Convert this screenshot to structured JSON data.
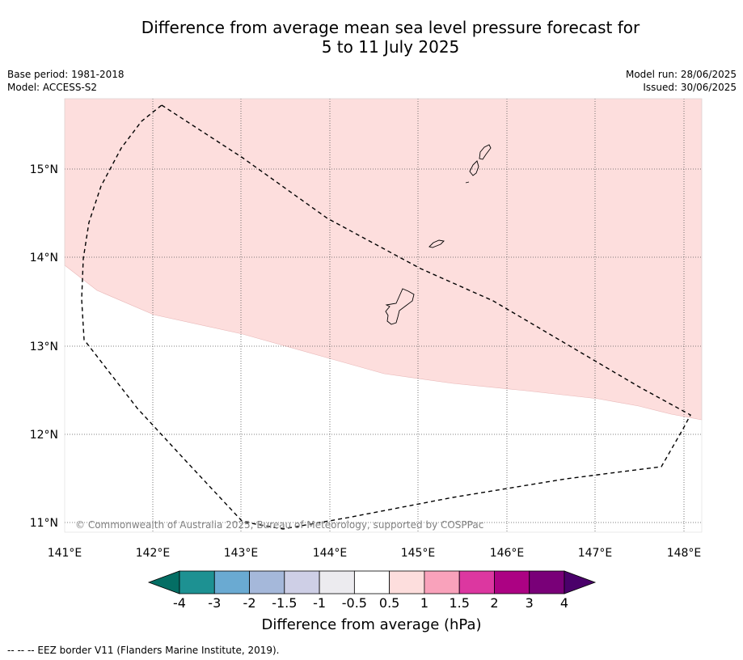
{
  "title": {
    "line1": "Difference from average mean sea level pressure forecast for",
    "line2": "5 to 11 July 2025"
  },
  "meta": {
    "base_period": "Base period: 1981-2018",
    "model": "Model: ACCESS-S2",
    "model_run": "Model run: 28/06/2025",
    "issued": "Issued: 30/06/2025"
  },
  "map": {
    "lon_labels": [
      "141°E",
      "142°E",
      "143°E",
      "144°E",
      "145°E",
      "146°E",
      "147°E",
      "148°E"
    ],
    "lat_labels": [
      "15°N",
      "14°N",
      "13°N",
      "12°N",
      "11°N"
    ],
    "copyright": "© Commonwealth of Australia 2025, Bureau of Meteorology, supported by COSPPac",
    "anomaly_fill_color": "#fddedd",
    "anomaly_category": "0.5 to 1 hPa"
  },
  "colorbar": {
    "title": "Difference from average (hPa)",
    "tick_labels": [
      "-4",
      "-3",
      "-2",
      "-1.5",
      "-1",
      "-0.5",
      "0.5",
      "1",
      "1.5",
      "2",
      "3",
      "4"
    ],
    "colors": [
      "#046e64",
      "#1d9192",
      "#6aaad2",
      "#a5b8da",
      "#cecfe6",
      "#ecebef",
      "#ffffff",
      "#fddedd",
      "#f9a2bb",
      "#dc37a0",
      "#ac0283",
      "#790078",
      "#4a006a"
    ]
  },
  "legend_note": "-- -- -- EEZ border V11 (Flanders Marine Institute, 2019)."
}
